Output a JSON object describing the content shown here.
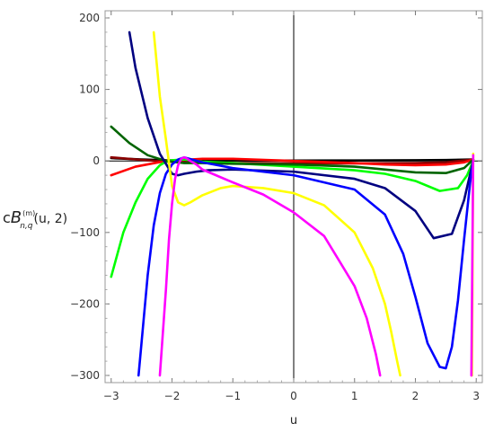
{
  "chart_data": {
    "type": "line",
    "xlabel": "u",
    "ylabel": {
      "prefix": "c",
      "main": "B",
      "sup": "(m)",
      "sub": "n,q",
      "args": "(u, 2)"
    },
    "xlim": [
      -3.1,
      3.1
    ],
    "ylim": [
      -310,
      210
    ],
    "x_ticks": [
      -3,
      -2,
      -1,
      0,
      1,
      2,
      3
    ],
    "x_tick_labels": [
      "−3",
      "−2",
      "−1",
      "0",
      "1",
      "2",
      "3"
    ],
    "y_ticks": [
      200,
      100,
      0,
      -100,
      -200,
      -300
    ],
    "y_tick_labels": [
      "200",
      "100",
      "0",
      "−100",
      "−200",
      "−300"
    ],
    "grid": false,
    "legend": "none",
    "series": [
      {
        "color": "#000000",
        "x": [
          -3.0,
          -2.5,
          -2.1,
          -1.5,
          -1.0,
          0.0,
          1.0,
          2.0,
          2.5,
          2.95
        ],
        "y": [
          4,
          2,
          1,
          0.8,
          0.6,
          0.5,
          0.7,
          1.0,
          1.3,
          2
        ]
      },
      {
        "color": "#8b0000",
        "x": [
          -3.0,
          -2.5,
          -2.1,
          -1.5,
          -1.0,
          0.0,
          1.0,
          2.0,
          2.5,
          2.95
        ],
        "y": [
          5,
          1.5,
          -1,
          -2.5,
          -3,
          -3.5,
          -3.5,
          -3,
          -2,
          2
        ]
      },
      {
        "color": "#ff0000",
        "x": [
          -3.0,
          -2.6,
          -2.1,
          -1.5,
          -1.0,
          0.0,
          1.0,
          1.5,
          2.0,
          2.5,
          2.8,
          2.95
        ],
        "y": [
          -20,
          -8,
          0,
          3,
          3,
          0,
          -3,
          -5,
          -6,
          -5,
          -2,
          2
        ]
      },
      {
        "color": "#00ff00",
        "x": [
          -3.0,
          -2.8,
          -2.6,
          -2.4,
          -2.2,
          -2.1,
          -2.0,
          -1.8,
          -1.5,
          -1.0,
          0.0,
          1.0,
          1.5,
          2.0,
          2.4,
          2.7,
          2.85,
          2.95
        ],
        "y": [
          -162,
          -100,
          -58,
          -25,
          -6,
          -1,
          1,
          2,
          -1,
          -3,
          -8,
          -13,
          -18,
          -28,
          -42,
          -38,
          -20,
          0
        ]
      },
      {
        "color": "#006400",
        "x": [
          -3.0,
          -2.7,
          -2.4,
          -2.1,
          -1.8,
          -1.5,
          -1.0,
          0.0,
          1.0,
          2.0,
          2.5,
          2.8,
          2.95
        ],
        "y": [
          48,
          25,
          8,
          0,
          -3,
          -3,
          -4,
          -5,
          -8,
          -16,
          -17,
          -10,
          2
        ]
      },
      {
        "color": "#000080",
        "x": [
          -2.7,
          -2.6,
          -2.4,
          -2.2,
          -2.0,
          -1.9,
          -1.8,
          -1.6,
          -1.4,
          -1.0,
          0.0,
          1.0,
          1.5,
          2.0,
          2.3,
          2.6,
          2.8,
          2.95
        ],
        "y": [
          180,
          130,
          60,
          10,
          -18,
          -20,
          -18,
          -15,
          -13,
          -12,
          -15,
          -25,
          -38,
          -70,
          -108,
          -102,
          -55,
          0
        ]
      },
      {
        "color": "#0000ff",
        "x": [
          -2.55,
          -2.4,
          -2.3,
          -2.2,
          -2.1,
          -2.0,
          -1.9,
          -1.8,
          -1.5,
          -1.0,
          0.0,
          1.0,
          1.5,
          1.8,
          2.0,
          2.2,
          2.4,
          2.5,
          2.6,
          2.7,
          2.8,
          2.9,
          2.95
        ],
        "y": [
          -300,
          -160,
          -90,
          -45,
          -18,
          -5,
          2,
          5,
          -2,
          -10,
          -20,
          -40,
          -75,
          -130,
          -190,
          -255,
          -288,
          -290,
          -260,
          -195,
          -110,
          -30,
          0
        ]
      },
      {
        "color": "#ffff00",
        "x": [
          -2.3,
          -2.2,
          -2.1,
          -2.0,
          -1.9,
          -1.8,
          -1.7,
          -1.5,
          -1.2,
          -1.0,
          -0.5,
          0.0,
          0.5,
          1.0,
          1.3,
          1.5,
          1.6,
          1.7,
          1.75
        ],
        "y": [
          180,
          90,
          30,
          -35,
          -58,
          -62,
          -58,
          -48,
          -38,
          -35,
          -38,
          -45,
          -62,
          -100,
          -150,
          -200,
          -238,
          -280,
          -300
        ]
      },
      {
        "color": "#ff00ff",
        "x": [
          -2.2,
          -2.1,
          -2.05,
          -2.0,
          -1.95,
          -1.9,
          -1.85,
          -1.8,
          -1.75,
          -1.7,
          -1.6,
          -1.5,
          -1.0,
          -0.5,
          0.0,
          0.5,
          1.0,
          1.2,
          1.35,
          1.42
        ],
        "y": [
          -300,
          -180,
          -110,
          -60,
          -25,
          -6,
          3,
          5,
          3,
          0,
          -5,
          -12,
          -30,
          -47,
          -72,
          -105,
          -175,
          -220,
          -270,
          -300
        ]
      },
      {
        "color": "#ffff00",
        "x": [
          2.93,
          2.95
        ],
        "y": [
          -300,
          10
        ]
      },
      {
        "color": "#ff00ff",
        "x": [
          2.92,
          2.95
        ],
        "y": [
          -300,
          8
        ]
      }
    ]
  }
}
